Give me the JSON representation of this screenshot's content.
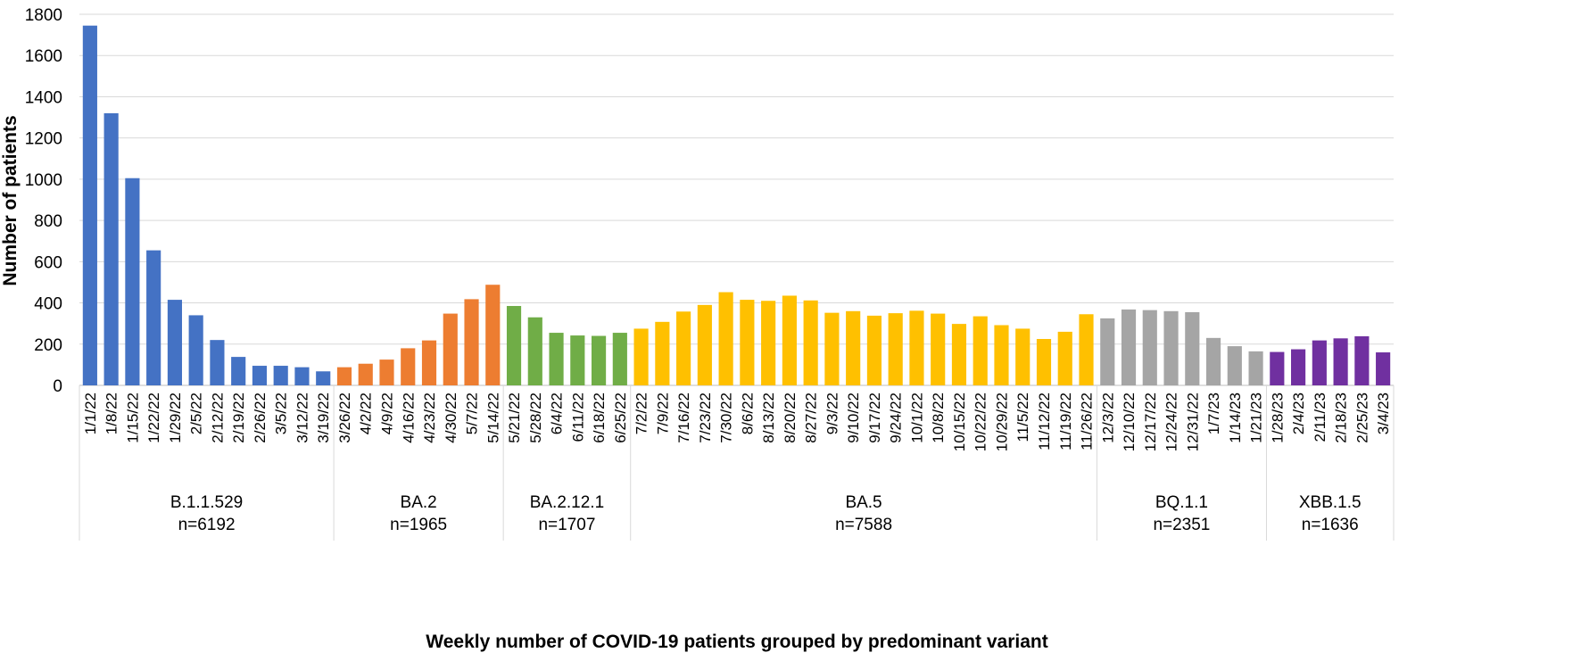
{
  "chart_data": {
    "type": "bar",
    "ylabel": "Number of patients",
    "xlabel": "Weekly number of COVID-19 patients grouped by predominant variant",
    "ylim": [
      0,
      1800
    ],
    "yticks": [
      0,
      200,
      400,
      600,
      800,
      1000,
      1200,
      1400,
      1600,
      1800
    ],
    "grid": true,
    "legend": "none",
    "groups": [
      {
        "name": "B.1.1.529",
        "n_label": "n=6192",
        "color": "#4472C4",
        "categories": [
          "1/1/22",
          "1/8/22",
          "1/15/22",
          "1/22/22",
          "1/29/22",
          "2/5/22",
          "2/12/22",
          "2/19/22",
          "2/26/22",
          "3/5/22",
          "3/12/22",
          "3/19/22"
        ],
        "values": [
          1745,
          1320,
          1005,
          655,
          415,
          340,
          220,
          138,
          95,
          95,
          88,
          68
        ]
      },
      {
        "name": "BA.2",
        "n_label": "n=1965",
        "color": "#ED7D31",
        "categories": [
          "3/26/22",
          "4/2/22",
          "4/9/22",
          "4/16/22",
          "4/23/22",
          "4/30/22",
          "5/7/22",
          "5/14/22"
        ],
        "values": [
          88,
          105,
          125,
          180,
          218,
          348,
          418,
          488
        ]
      },
      {
        "name": "BA.2.12.1",
        "n_label": "n=1707",
        "color": "#70AD47",
        "categories": [
          "5/21/22",
          "5/28/22",
          "6/4/22",
          "6/11/22",
          "6/18/22",
          "6/25/22"
        ],
        "values": [
          385,
          330,
          255,
          242,
          240,
          255
        ]
      },
      {
        "name": "BA.5",
        "n_label": "n=7588",
        "color": "#FFC000",
        "categories": [
          "7/2/22",
          "7/9/22",
          "7/16/22",
          "7/23/22",
          "7/30/22",
          "8/6/22",
          "8/13/22",
          "8/20/22",
          "8/27/22",
          "9/3/22",
          "9/10/22",
          "9/17/22",
          "9/24/22",
          "10/1/22",
          "10/8/22",
          "10/15/22",
          "10/22/22",
          "10/29/22",
          "11/5/22",
          "11/12/22",
          "11/19/22",
          "11/26/22"
        ],
        "values": [
          275,
          308,
          358,
          390,
          452,
          415,
          410,
          435,
          412,
          352,
          360,
          338,
          350,
          362,
          348,
          298,
          335,
          292,
          275,
          225,
          260,
          345
        ]
      },
      {
        "name": "BQ.1.1",
        "n_label": "n=2351",
        "color": "#A5A5A5",
        "categories": [
          "12/3/22",
          "12/10/22",
          "12/17/22",
          "12/24/22",
          "12/31/22",
          "1/7/23",
          "1/14/23",
          "1/21/23"
        ],
        "values": [
          325,
          368,
          365,
          360,
          355,
          230,
          190,
          165
        ]
      },
      {
        "name": "XBB.1.5",
        "n_label": "n=1636",
        "color": "#7030A0",
        "categories": [
          "1/28/23",
          "2/4/23",
          "2/11/23",
          "2/18/23",
          "2/25/23",
          "3/4/23"
        ],
        "values": [
          162,
          175,
          218,
          228,
          238,
          160
        ]
      }
    ]
  }
}
